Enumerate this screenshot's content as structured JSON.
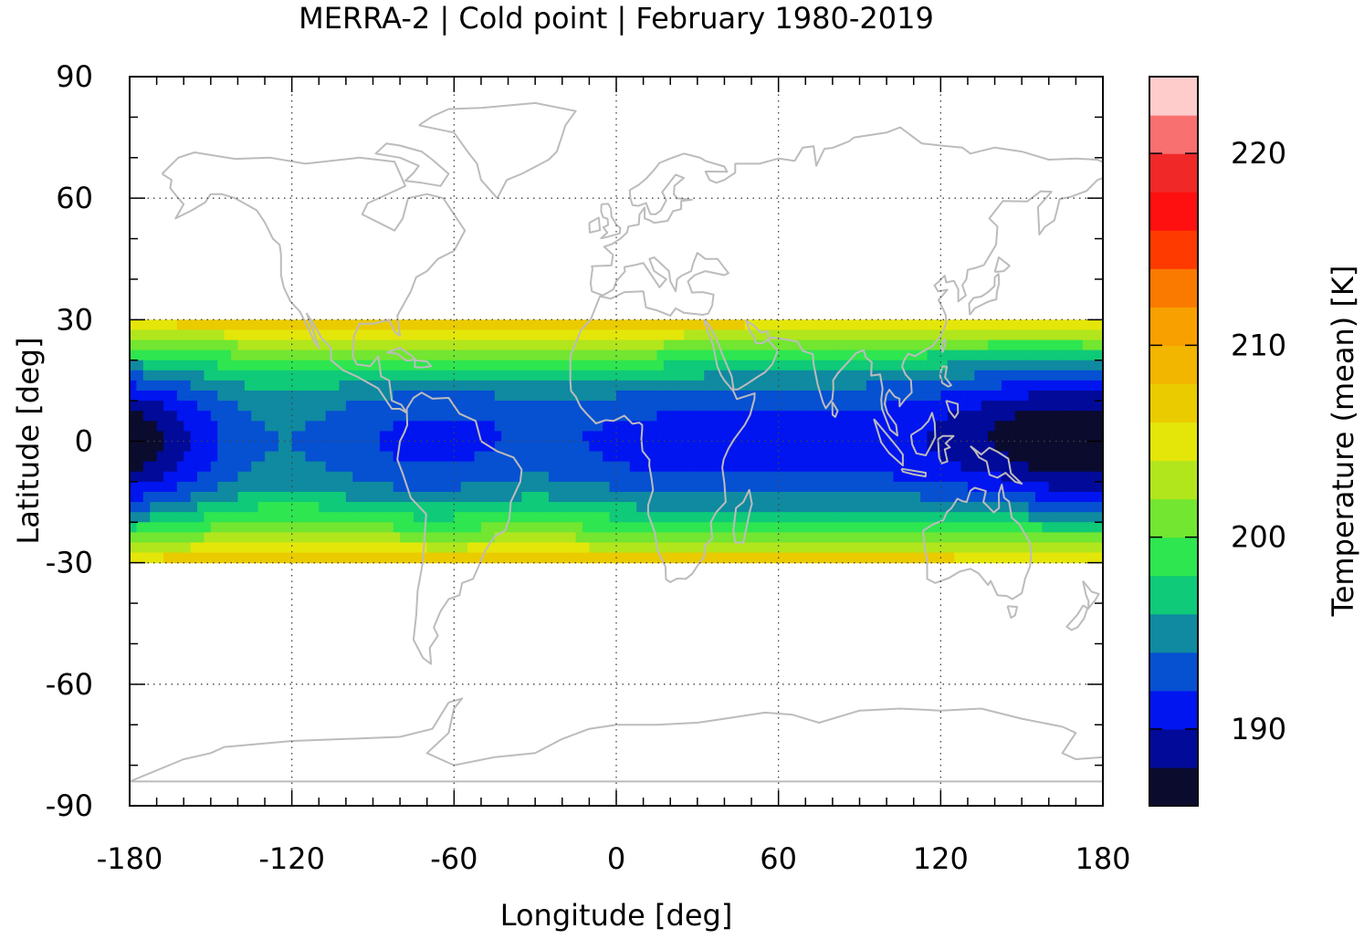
{
  "chart_data": {
    "type": "heatmap",
    "title": "MERRA-2 | Cold point | February 1980-2019",
    "xlabel": "Longitude [deg]",
    "ylabel": "Latitude [deg]",
    "xlim": [
      -180,
      180
    ],
    "ylim": [
      -90,
      90
    ],
    "x_ticks": [
      "-180",
      "-120",
      "-60",
      "0",
      "60",
      "120",
      "180"
    ],
    "y_ticks": [
      "90",
      "60",
      "30",
      "0",
      "-30",
      "-60",
      "-90"
    ],
    "grid": "dotted at major ticks",
    "data_lat_range": [
      -30,
      30
    ],
    "colorbar": {
      "label": "Temperature (mean) [K]",
      "range": [
        186,
        224
      ],
      "step": 2,
      "tick_labels": [
        "190",
        "200",
        "210",
        "220"
      ],
      "colors": [
        "#0b0b2e",
        "#020a99",
        "#0015f0",
        "#0650d2",
        "#0f8aa0",
        "#0fca78",
        "#2ee650",
        "#72e630",
        "#b2e61c",
        "#e4e60a",
        "#eacb00",
        "#f2b500",
        "#f8a000",
        "#fa7a00",
        "#ff3a00",
        "#ff1010",
        "#f02828",
        "#f87070",
        "#ffcccc"
      ]
    },
    "field_description": "Zonal band -30..30 deg latitude; coldest (<190 K) over western Pacific/Maritime Continent and near the dateline equator; warmest (~206-208 K) at the band edges near 30N and 30S."
  }
}
